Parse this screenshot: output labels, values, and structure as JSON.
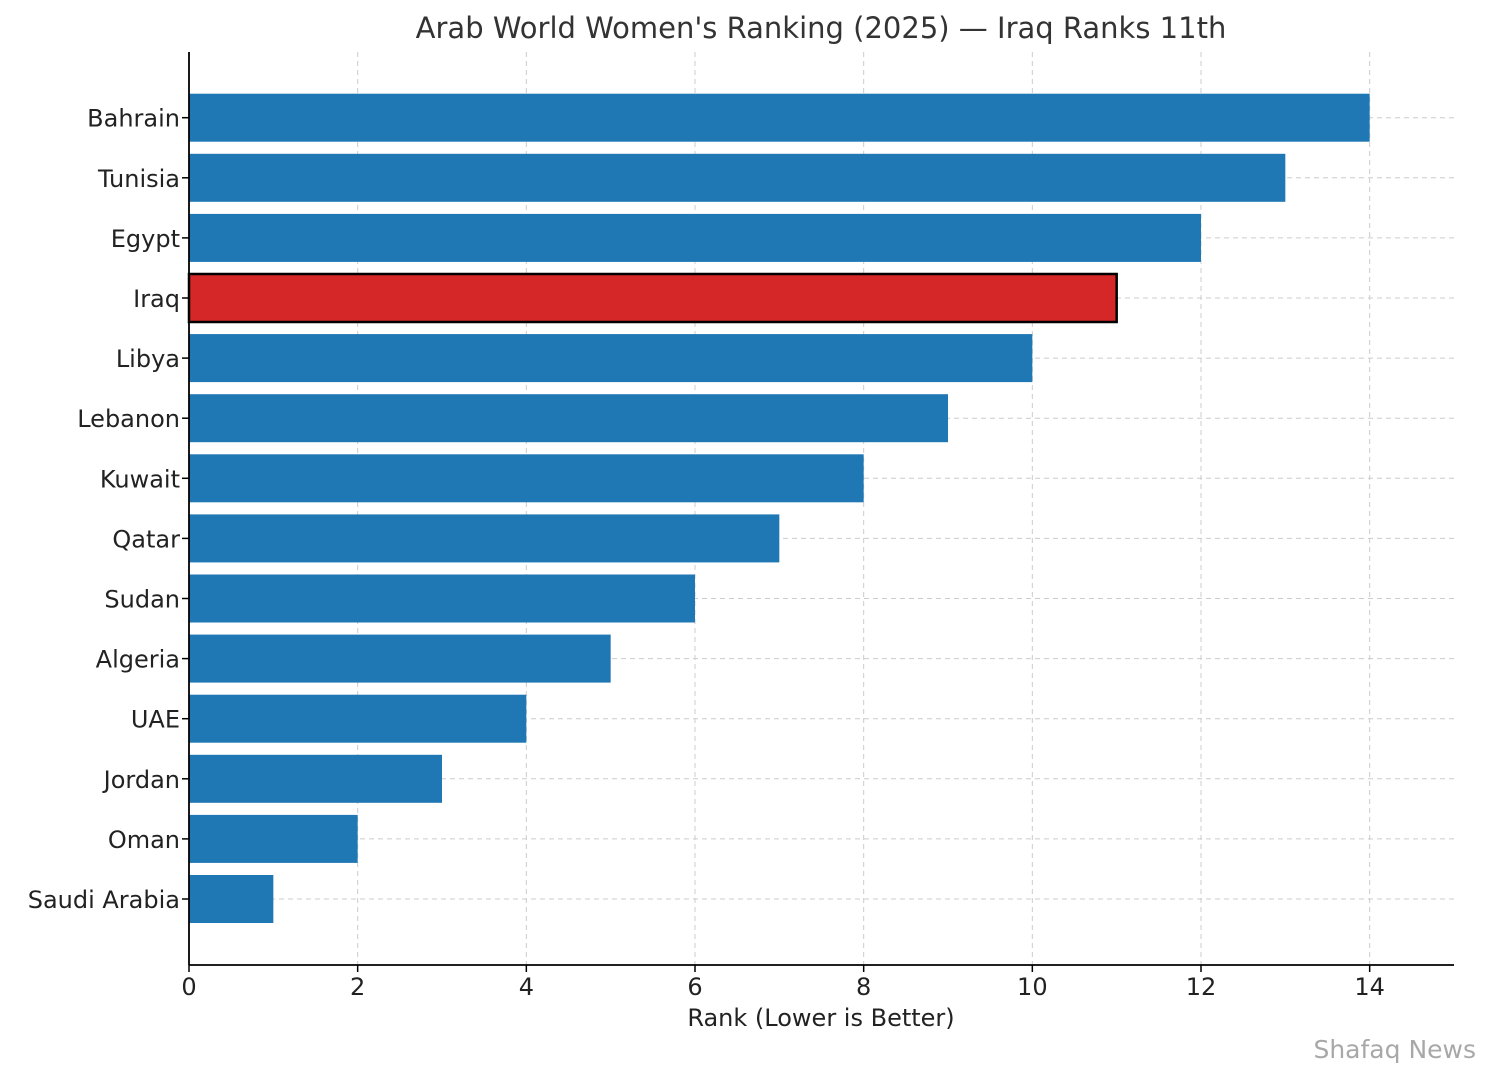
{
  "chart_data": {
    "type": "bar",
    "orientation": "horizontal",
    "title": "Arab World Women's Ranking (2025) — Iraq Ranks 11th",
    "xlabel": "Rank (Lower is Better)",
    "ylabel": "",
    "xlim": [
      0,
      15
    ],
    "xticks": [
      0,
      2,
      4,
      6,
      8,
      10,
      12,
      14
    ],
    "grid": true,
    "categories": [
      "Saudi Arabia",
      "Oman",
      "Jordan",
      "UAE",
      "Algeria",
      "Sudan",
      "Qatar",
      "Kuwait",
      "Lebanon",
      "Libya",
      "Iraq",
      "Egypt",
      "Tunisia",
      "Bahrain"
    ],
    "values": [
      1,
      2,
      3,
      4,
      5,
      6,
      7,
      8,
      9,
      10,
      11,
      12,
      13,
      14
    ],
    "highlight": "Iraq",
    "colors": {
      "bar": "#1f77b4",
      "highlight": "#d62728",
      "highlight_edge": "#000000",
      "grid": "#cccccc"
    }
  },
  "watermark": "Shafaq News"
}
